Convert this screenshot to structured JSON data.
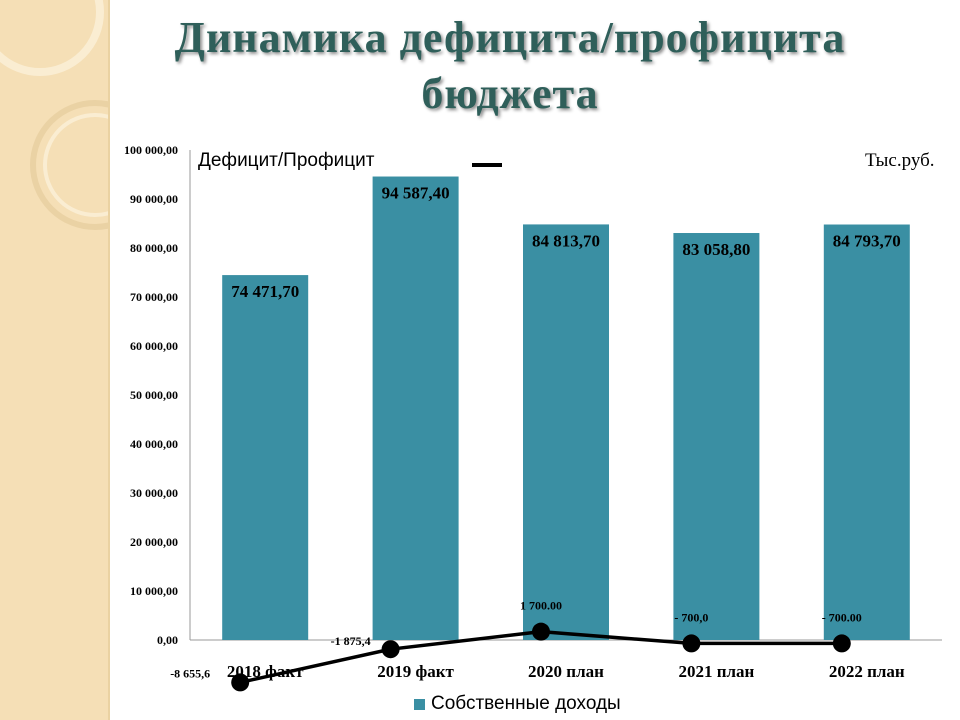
{
  "title": {
    "line1": "Динамика дефицита/профицита",
    "line2": "бюджета"
  },
  "header": {
    "left_label": "Дефицит/Профицит",
    "right_label": "Тыс.руб."
  },
  "legend": {
    "label": "Собственные доходы"
  },
  "colors": {
    "bar": "#3a8fa3",
    "line": "#000000",
    "title": "#2f5f5a",
    "side_strip": "#f5dfb6"
  },
  "chart_data": {
    "type": "bar",
    "categories": [
      "2018 факт",
      "2019 факт",
      "2020 план",
      "2021 план",
      "2022 план"
    ],
    "y_ticks": [
      "100 000,00",
      "90 000,00",
      "80 000,00",
      "70 000,00",
      "60 000,00",
      "50 000,00",
      "40 000,00",
      "30 000,00",
      "20 000,00",
      "10 000,00",
      "0,00"
    ],
    "ylim": [
      0,
      100000
    ],
    "series": [
      {
        "name": "Собственные доходы",
        "type": "bar",
        "values": [
          74471.7,
          94587.4,
          84813.7,
          83058.8,
          84793.7
        ],
        "labels": [
          "74 471,70",
          "94 587,40",
          "84 813,70",
          "83 058,80",
          "84 793,70"
        ]
      },
      {
        "type": "line",
        "values": [
          -8655.6,
          -1875.4,
          1700.0,
          -700.0,
          -700.0
        ],
        "labels": [
          "-8 655,6",
          "-1 875,4",
          "1 700.00",
          "- 700,0",
          "- 700.00"
        ]
      }
    ],
    "grid": false,
    "legend_position": "bottom"
  }
}
